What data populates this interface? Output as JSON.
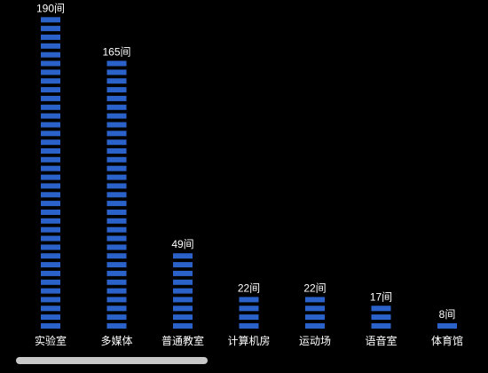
{
  "chart_data": {
    "type": "bar",
    "categories": [
      "实验室",
      "多媒体",
      "普通教室",
      "计算机房",
      "运动场",
      "语音室",
      "体育馆"
    ],
    "values": [
      190,
      165,
      49,
      22,
      22,
      17,
      8
    ],
    "value_labels": [
      "190间",
      "165间",
      "49间",
      "22间",
      "22间",
      "17间",
      "8间"
    ],
    "ylim": [
      0,
      190
    ],
    "grid": false,
    "legend": "none",
    "bar_color": "#2a62c9",
    "background": "#000000",
    "label_color": "#ffffff"
  }
}
